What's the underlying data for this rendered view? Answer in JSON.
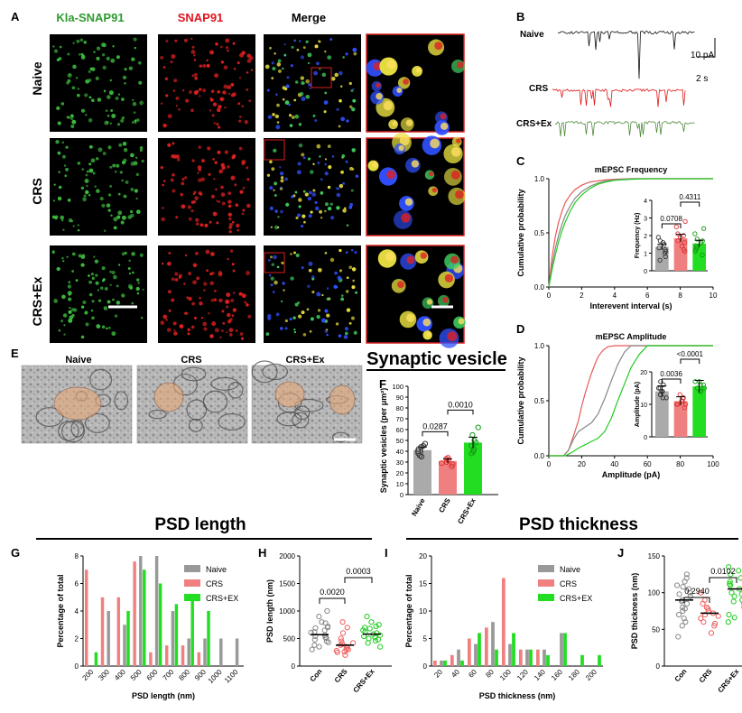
{
  "panels": {
    "A": "A",
    "B": "B",
    "C": "C",
    "D": "D",
    "E": "E",
    "F": "F",
    "G": "G",
    "H": "H",
    "I": "I",
    "J": "J"
  },
  "micro": {
    "columns": [
      "Kla-SNAP91",
      "SNAP91",
      "Merge"
    ],
    "rows": [
      "Naive",
      "CRS",
      "CRS+Ex"
    ],
    "colors": {
      "green": "#2f9a2f",
      "red": "#e0141e",
      "zoom_border": "#d92020"
    }
  },
  "em": {
    "labels": [
      "Naive",
      "CRS",
      "CRS+Ex"
    ],
    "title": "Synaptic vesicle"
  },
  "traces": {
    "labels": [
      "Naive",
      "CRS",
      "CRS+Ex"
    ],
    "scale_y": "10 pA",
    "scale_x": "2 s",
    "colors": [
      "#111111",
      "#e01818",
      "#4f8a3a"
    ]
  },
  "section_titles": {
    "psd_length": "PSD length",
    "psd_thickness": "PSD thickness"
  },
  "chart_data": [
    {
      "id": "C",
      "type": "line",
      "title": "mEPSC Frequency",
      "xlabel": "Interevent interval (s)",
      "ylabel": "Cumulative probability",
      "xlim": [
        0,
        10
      ],
      "ylim": [
        0,
        1.0
      ],
      "xticks": [
        "0",
        "2",
        "4",
        "6",
        "8",
        "10"
      ],
      "yticks": [
        "0.0",
        "0.5",
        "1.0"
      ],
      "series": [
        {
          "color": "#e85a5a",
          "x": [
            0,
            0.2,
            0.4,
            0.6,
            0.8,
            1.0,
            1.3,
            1.6,
            2.0,
            2.5,
            3.0,
            3.5,
            4.0,
            5.0,
            6.0,
            8.0,
            10
          ],
          "y": [
            0,
            0.28,
            0.47,
            0.6,
            0.7,
            0.78,
            0.85,
            0.9,
            0.94,
            0.97,
            0.98,
            0.99,
            0.995,
            1,
            1,
            1,
            1
          ]
        },
        {
          "color": "#888888",
          "x": [
            0,
            0.2,
            0.4,
            0.6,
            0.8,
            1.0,
            1.3,
            1.6,
            2.0,
            2.5,
            3.0,
            3.5,
            4.0,
            5.0,
            6.0,
            8.0,
            10
          ],
          "y": [
            0,
            0.2,
            0.36,
            0.48,
            0.58,
            0.66,
            0.75,
            0.82,
            0.88,
            0.93,
            0.96,
            0.98,
            0.99,
            1,
            1,
            1,
            1
          ]
        },
        {
          "color": "#22cc22",
          "x": [
            0,
            0.2,
            0.4,
            0.6,
            0.8,
            1.0,
            1.3,
            1.6,
            2.0,
            2.5,
            3.0,
            3.5,
            4.0,
            5.0,
            6.0,
            8.0,
            10
          ],
          "y": [
            0,
            0.16,
            0.3,
            0.42,
            0.52,
            0.6,
            0.7,
            0.78,
            0.85,
            0.91,
            0.95,
            0.97,
            0.985,
            0.995,
            1,
            1,
            1
          ]
        }
      ],
      "inset": {
        "ylabel": "Frequency (Hz)",
        "ylim": [
          0,
          4
        ],
        "yticks": [
          "0",
          "1",
          "2",
          "3",
          "4"
        ],
        "means": [
          1.35,
          1.85,
          1.55
        ],
        "points": [
          [
            1.1,
            1.5,
            0.8,
            1.9,
            1.3,
            0.6,
            1.2,
            1.6,
            1.0,
            1.7
          ],
          [
            2.5,
            1.6,
            1.2,
            2.1,
            2.8,
            1.4,
            1.9,
            1.1,
            2.0,
            1.7
          ],
          [
            1.3,
            2.1,
            0.9,
            1.8,
            1.6,
            2.4,
            1.1,
            1.4,
            1.7,
            1.2
          ]
        ],
        "comparisons": [
          {
            "between": [
              0,
              1
            ],
            "p": "0.0708"
          },
          {
            "between": [
              1,
              2
            ],
            "p": "0.4311"
          }
        ]
      }
    },
    {
      "id": "D",
      "type": "line",
      "title": "mEPSC Amplitude",
      "xlabel": "Amplitude (pA)",
      "ylabel": "Cumulative probability",
      "xlim": [
        0,
        100
      ],
      "ylim": [
        0,
        1.0
      ],
      "xticks": [
        "0",
        "20",
        "40",
        "60",
        "80",
        "100"
      ],
      "yticks": [
        "0.0",
        "0.5",
        "1.0"
      ],
      "series": [
        {
          "color": "#e85a5a",
          "x": [
            0,
            9,
            12,
            15,
            18,
            20,
            22,
            24,
            26,
            28,
            30,
            33,
            36,
            40,
            100
          ],
          "y": [
            0,
            0,
            0.05,
            0.18,
            0.32,
            0.45,
            0.56,
            0.66,
            0.75,
            0.83,
            0.9,
            0.96,
            0.99,
            1,
            1
          ]
        },
        {
          "color": "#888888",
          "x": [
            0,
            9,
            12,
            15,
            18,
            22,
            26,
            30,
            34,
            38,
            42,
            46,
            50,
            100
          ],
          "y": [
            0,
            0,
            0.05,
            0.15,
            0.22,
            0.26,
            0.3,
            0.38,
            0.52,
            0.68,
            0.83,
            0.94,
            1,
            1
          ]
        },
        {
          "color": "#22cc22",
          "x": [
            0,
            10,
            14,
            18,
            22,
            26,
            30,
            34,
            38,
            42,
            46,
            50,
            55,
            60,
            100
          ],
          "y": [
            0,
            0,
            0.03,
            0.07,
            0.1,
            0.13,
            0.16,
            0.22,
            0.34,
            0.5,
            0.65,
            0.8,
            0.92,
            1,
            1
          ]
        }
      ],
      "inset": {
        "ylabel": "Amplitude (pA)",
        "ylim": [
          0,
          20
        ],
        "yticks": [
          "0",
          "10",
          "20"
        ],
        "means": [
          14,
          11,
          15.5
        ],
        "points": [
          [
            12,
            14,
            16,
            13,
            15,
            17,
            13,
            14,
            12,
            15
          ],
          [
            10,
            12,
            11,
            13,
            9,
            11,
            10,
            12,
            11,
            10
          ],
          [
            15,
            16,
            14,
            17,
            16,
            15,
            14,
            17
          ]
        ],
        "comparisons": [
          {
            "between": [
              0,
              1
            ],
            "p": "0.0036"
          },
          {
            "between": [
              1,
              2
            ],
            "p": "<0.0001"
          }
        ]
      }
    },
    {
      "id": "F",
      "type": "bar",
      "ylabel": "Synaptic vesicles (per μm²)",
      "categories": [
        "Naive",
        "CRS",
        "CRS+Ex"
      ],
      "values": [
        41,
        31,
        48
      ],
      "sem": [
        3,
        2,
        5
      ],
      "ylim": [
        0,
        100
      ],
      "yticks": [
        "0",
        "10",
        "20",
        "30",
        "40",
        "50",
        "60",
        "70",
        "80",
        "90",
        "100"
      ],
      "points": [
        [
          36,
          44,
          40,
          38,
          47,
          42,
          35,
          45
        ],
        [
          30,
          28,
          34,
          26,
          32,
          33,
          29
        ],
        [
          40,
          38,
          62,
          55,
          45,
          42,
          50,
          48
        ]
      ],
      "comparisons": [
        {
          "between": [
            0,
            1
          ],
          "p": "0.0287"
        },
        {
          "between": [
            1,
            2
          ],
          "p": "0.0010"
        }
      ]
    },
    {
      "id": "G",
      "type": "bar",
      "xlabel": "PSD length (nm)",
      "ylabel": "Percentage of total",
      "categories": [
        "200",
        "300",
        "400",
        "500",
        "600",
        "700",
        "800",
        "900",
        "1000",
        "1100"
      ],
      "ylim": [
        0,
        8
      ],
      "yticks": [
        "0",
        "2",
        "4",
        "6",
        "8"
      ],
      "legend_position": "top-right",
      "series": [
        {
          "name": "Naive",
          "color": "#999999",
          "values": [
            0,
            4,
            3,
            8,
            8,
            4,
            2,
            2,
            2,
            2
          ]
        },
        {
          "name": "CRS",
          "color": "#f08080",
          "values": [
            7,
            5,
            5,
            7.6,
            1,
            1.5,
            1.5,
            1,
            0,
            0
          ]
        },
        {
          "name": "CRS+EX",
          "color": "#22dd22",
          "values": [
            1,
            0,
            4,
            7,
            6,
            4.5,
            5,
            4,
            0,
            0
          ]
        }
      ]
    },
    {
      "id": "H",
      "type": "scatter",
      "ylabel": "PSD length (nm)",
      "categories": [
        "Con",
        "CRS",
        "CRS+Ex"
      ],
      "ylim": [
        0,
        2000
      ],
      "yticks": [
        "0",
        "500",
        "1000",
        "1500",
        "2000"
      ],
      "means": [
        570,
        380,
        580
      ],
      "points": [
        [
          300,
          450,
          520,
          620,
          700,
          800,
          900,
          1000,
          560,
          480,
          380,
          650,
          720,
          540,
          430,
          610,
          350,
          780,
          510,
          690
        ],
        [
          200,
          250,
          300,
          350,
          400,
          450,
          500,
          600,
          700,
          280,
          330,
          420,
          380,
          260,
          300,
          800
        ],
        [
          350,
          420,
          500,
          560,
          600,
          650,
          700,
          750,
          800,
          480,
          540,
          620,
          580,
          460,
          680,
          720,
          900,
          520
        ]
      ],
      "comparisons": [
        {
          "between": [
            0,
            1
          ],
          "p": "0.0020"
        },
        {
          "between": [
            1,
            2
          ],
          "p": "0.0003"
        }
      ]
    },
    {
      "id": "I",
      "type": "bar",
      "xlabel": "PSD thickness (nm)",
      "ylabel": "Percentage of total",
      "categories": [
        "20",
        "40",
        "60",
        "80",
        "100",
        "120",
        "140",
        "160",
        "180",
        "200"
      ],
      "ylim": [
        0,
        20
      ],
      "yticks": [
        "0",
        "5",
        "10",
        "15",
        "20"
      ],
      "legend_position": "top-right",
      "series": [
        {
          "name": "Naive",
          "color": "#999999",
          "values": [
            1,
            3,
            4,
            8,
            4,
            3,
            3,
            6,
            0,
            0
          ]
        },
        {
          "name": "CRS",
          "color": "#f08080",
          "values": [
            1,
            2,
            5,
            7,
            16,
            3,
            3,
            0,
            0,
            0
          ]
        },
        {
          "name": "CRS+EX",
          "color": "#22dd22",
          "values": [
            1,
            1,
            6,
            3,
            6,
            3,
            2,
            6,
            2,
            2
          ]
        }
      ]
    },
    {
      "id": "J",
      "type": "scatter",
      "ylabel": "PSD thickness (nm)",
      "categories": [
        "Con",
        "CRS",
        "CRS+Ex"
      ],
      "ylim": [
        0,
        150
      ],
      "yticks": [
        "0",
        "50",
        "100",
        "150"
      ],
      "means": [
        90,
        72,
        105
      ],
      "points": [
        [
          40,
          60,
          75,
          85,
          95,
          105,
          115,
          125,
          80,
          70,
          90,
          100,
          110,
          65,
          55,
          120,
          88,
          78,
          98,
          108
        ],
        [
          45,
          55,
          60,
          65,
          70,
          75,
          80,
          85,
          90,
          100,
          58,
          68,
          78,
          72
        ],
        [
          60,
          75,
          85,
          95,
          105,
          115,
          125,
          130,
          70,
          90,
          100,
          110,
          120,
          80,
          98,
          88,
          112,
          66,
          135
        ]
      ],
      "comparisons": [
        {
          "between": [
            0,
            1
          ],
          "p": "0.2940"
        },
        {
          "between": [
            1,
            2
          ],
          "p": "0.0102"
        }
      ]
    }
  ]
}
